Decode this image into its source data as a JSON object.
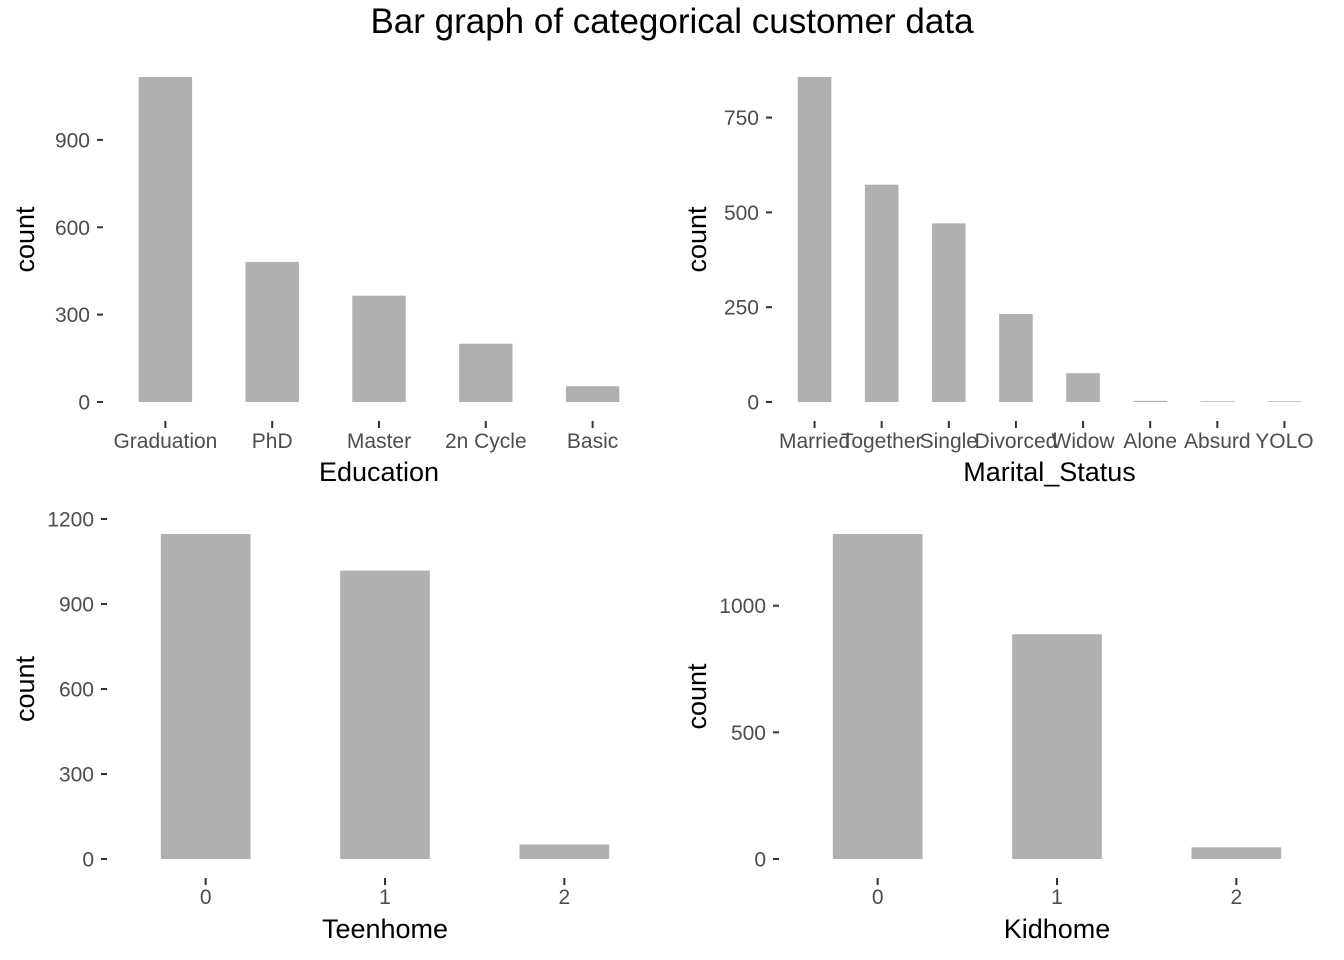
{
  "title": "Bar graph of categorical customer data",
  "colors": {
    "bar": "#b0b0b0",
    "tick": "#333333",
    "tick_label": "#4d4d4d",
    "axis_title": "#000000",
    "background": "#ffffff"
  },
  "chart_data": [
    {
      "type": "bar",
      "xlabel": "Education",
      "ylabel": "count",
      "categories": [
        "Graduation",
        "PhD",
        "Master",
        "2n Cycle",
        "Basic"
      ],
      "values": [
        1116,
        481,
        365,
        200,
        54
      ],
      "ylim": [
        0,
        1116
      ],
      "yticks": [
        0,
        300,
        600,
        900
      ],
      "grid": false
    },
    {
      "type": "bar",
      "xlabel": "Marital_Status",
      "ylabel": "count",
      "categories": [
        "Married",
        "Together",
        "Single",
        "Divorced",
        "Widow",
        "Alone",
        "Absurd",
        "YOLO"
      ],
      "values": [
        857,
        573,
        471,
        232,
        76,
        3,
        2,
        2
      ],
      "ylim": [
        0,
        857
      ],
      "yticks": [
        0,
        250,
        500,
        750
      ],
      "grid": false
    },
    {
      "type": "bar",
      "xlabel": "Teenhome",
      "ylabel": "count",
      "categories": [
        "0",
        "1",
        "2"
      ],
      "values": [
        1147,
        1018,
        51
      ],
      "ylim": [
        0,
        1200
      ],
      "yticks": [
        0,
        300,
        600,
        900,
        1200
      ],
      "grid": false
    },
    {
      "type": "bar",
      "xlabel": "Kidhome",
      "ylabel": "count",
      "categories": [
        "0",
        "1",
        "2"
      ],
      "values": [
        1283,
        887,
        46
      ],
      "ylim": [
        0,
        1283
      ],
      "yticks": [
        0,
        500,
        1000
      ],
      "grid": false
    }
  ]
}
